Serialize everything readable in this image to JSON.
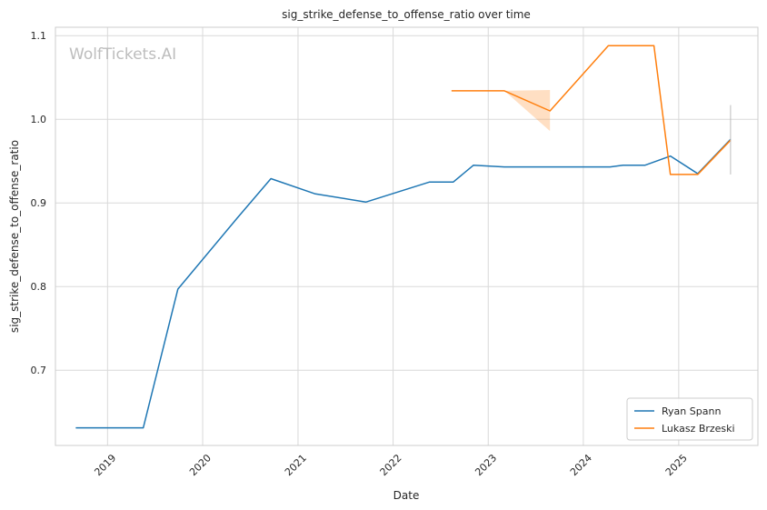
{
  "chart_data": {
    "type": "line",
    "title": "sig_strike_defense_to_offense_ratio over time",
    "xlabel": "Date",
    "ylabel": "sig_strike_defense_to_offense_ratio",
    "watermark": "WolfTickets.AI",
    "xlim": [
      "2018-06-15",
      "2025-11-01"
    ],
    "ylim": [
      0.61,
      1.11
    ],
    "x_ticks": [
      "2019-01-01",
      "2020-01-01",
      "2021-01-01",
      "2022-01-01",
      "2023-01-01",
      "2024-01-01",
      "2025-01-01"
    ],
    "x_tick_labels": [
      "2019",
      "2020",
      "2021",
      "2022",
      "2023",
      "2024",
      "2025"
    ],
    "y_ticks": [
      0.7,
      0.8,
      0.9,
      1.0,
      1.1
    ],
    "y_tick_labels": [
      "0.7",
      "0.8",
      "0.9",
      "1.0",
      "1.1"
    ],
    "grid": true,
    "legend_position": "lower-right",
    "series": [
      {
        "name": "Ryan Spann",
        "color": "#1f77b4",
        "x": [
          "2018-09-01",
          "2019-05-18",
          "2019-09-28",
          "2020-05-13",
          "2020-09-19",
          "2021-03-06",
          "2021-09-18",
          "2022-05-21",
          "2022-08-20",
          "2022-11-05",
          "2023-03-04",
          "2023-08-26",
          "2024-04-13",
          "2024-06-01",
          "2024-08-24",
          "2024-11-30",
          "2025-03-15",
          "2025-07-19"
        ],
        "values": [
          0.631,
          0.631,
          0.797,
          0.882,
          0.929,
          0.911,
          0.901,
          0.925,
          0.925,
          0.945,
          0.943,
          0.943,
          0.943,
          0.945,
          0.945,
          0.956,
          0.935,
          0.976
        ],
        "band": null
      },
      {
        "name": "Lukasz Brzeski",
        "color": "#ff7f0e",
        "x": [
          "2022-08-13",
          "2023-03-04",
          "2023-08-26",
          "2024-04-06",
          "2024-09-28",
          "2024-11-30",
          "2025-03-15",
          "2025-07-19"
        ],
        "values": [
          1.034,
          1.034,
          1.01,
          1.088,
          1.088,
          0.934,
          0.934,
          0.975
        ],
        "band": {
          "x": [
            "2023-03-04",
            "2023-08-26"
          ],
          "lower": [
            1.034,
            0.986
          ],
          "upper": [
            1.034,
            1.035
          ]
        }
      }
    ],
    "error_bars": [
      {
        "x": "2025-07-19",
        "lower": 0.934,
        "upper": 1.017,
        "color": "#bdbdbd"
      }
    ]
  }
}
